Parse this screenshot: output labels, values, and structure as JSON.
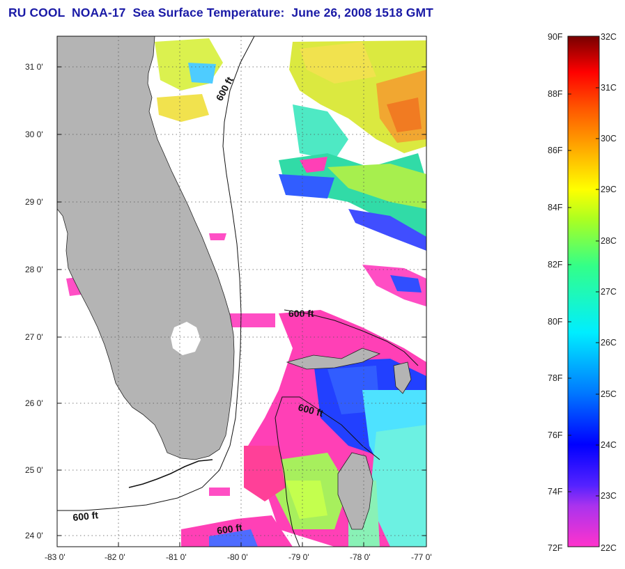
{
  "title": "RU COOL  NOAA-17  Sea Surface Temperature:  June 26, 2008 1518 GMT",
  "map": {
    "lat_ticks": [
      "31 0'",
      "30 0'",
      "29 0'",
      "28 0'",
      "27 0'",
      "26 0'",
      "25 0'",
      "24 0'"
    ],
    "lon_ticks": [
      "-83 0'",
      "-82 0'",
      "-81 0'",
      "-80 0'",
      "-79 0'",
      "-78 0'",
      "-77 0'"
    ],
    "lat_range": [
      23.8,
      31.4
    ],
    "lon_range": [
      -83.0,
      -77.0
    ],
    "grid": "dotted",
    "land_color": "#b4b4b4",
    "no_data_color": "#ffffff",
    "contour_labels": [
      "600 ft",
      "600 ft",
      "600 ft",
      "600 ft",
      "600 ft"
    ]
  },
  "colorbar": {
    "fahrenheit_labels": [
      "90F",
      "88F",
      "86F",
      "84F",
      "82F",
      "80F",
      "78F",
      "76F",
      "74F",
      "72F"
    ],
    "celsius_labels": [
      "32C",
      "31C",
      "30C",
      "29C",
      "28C",
      "27C",
      "26C",
      "25C",
      "24C",
      "23C",
      "22C"
    ],
    "range_c": [
      22,
      32
    ]
  }
}
